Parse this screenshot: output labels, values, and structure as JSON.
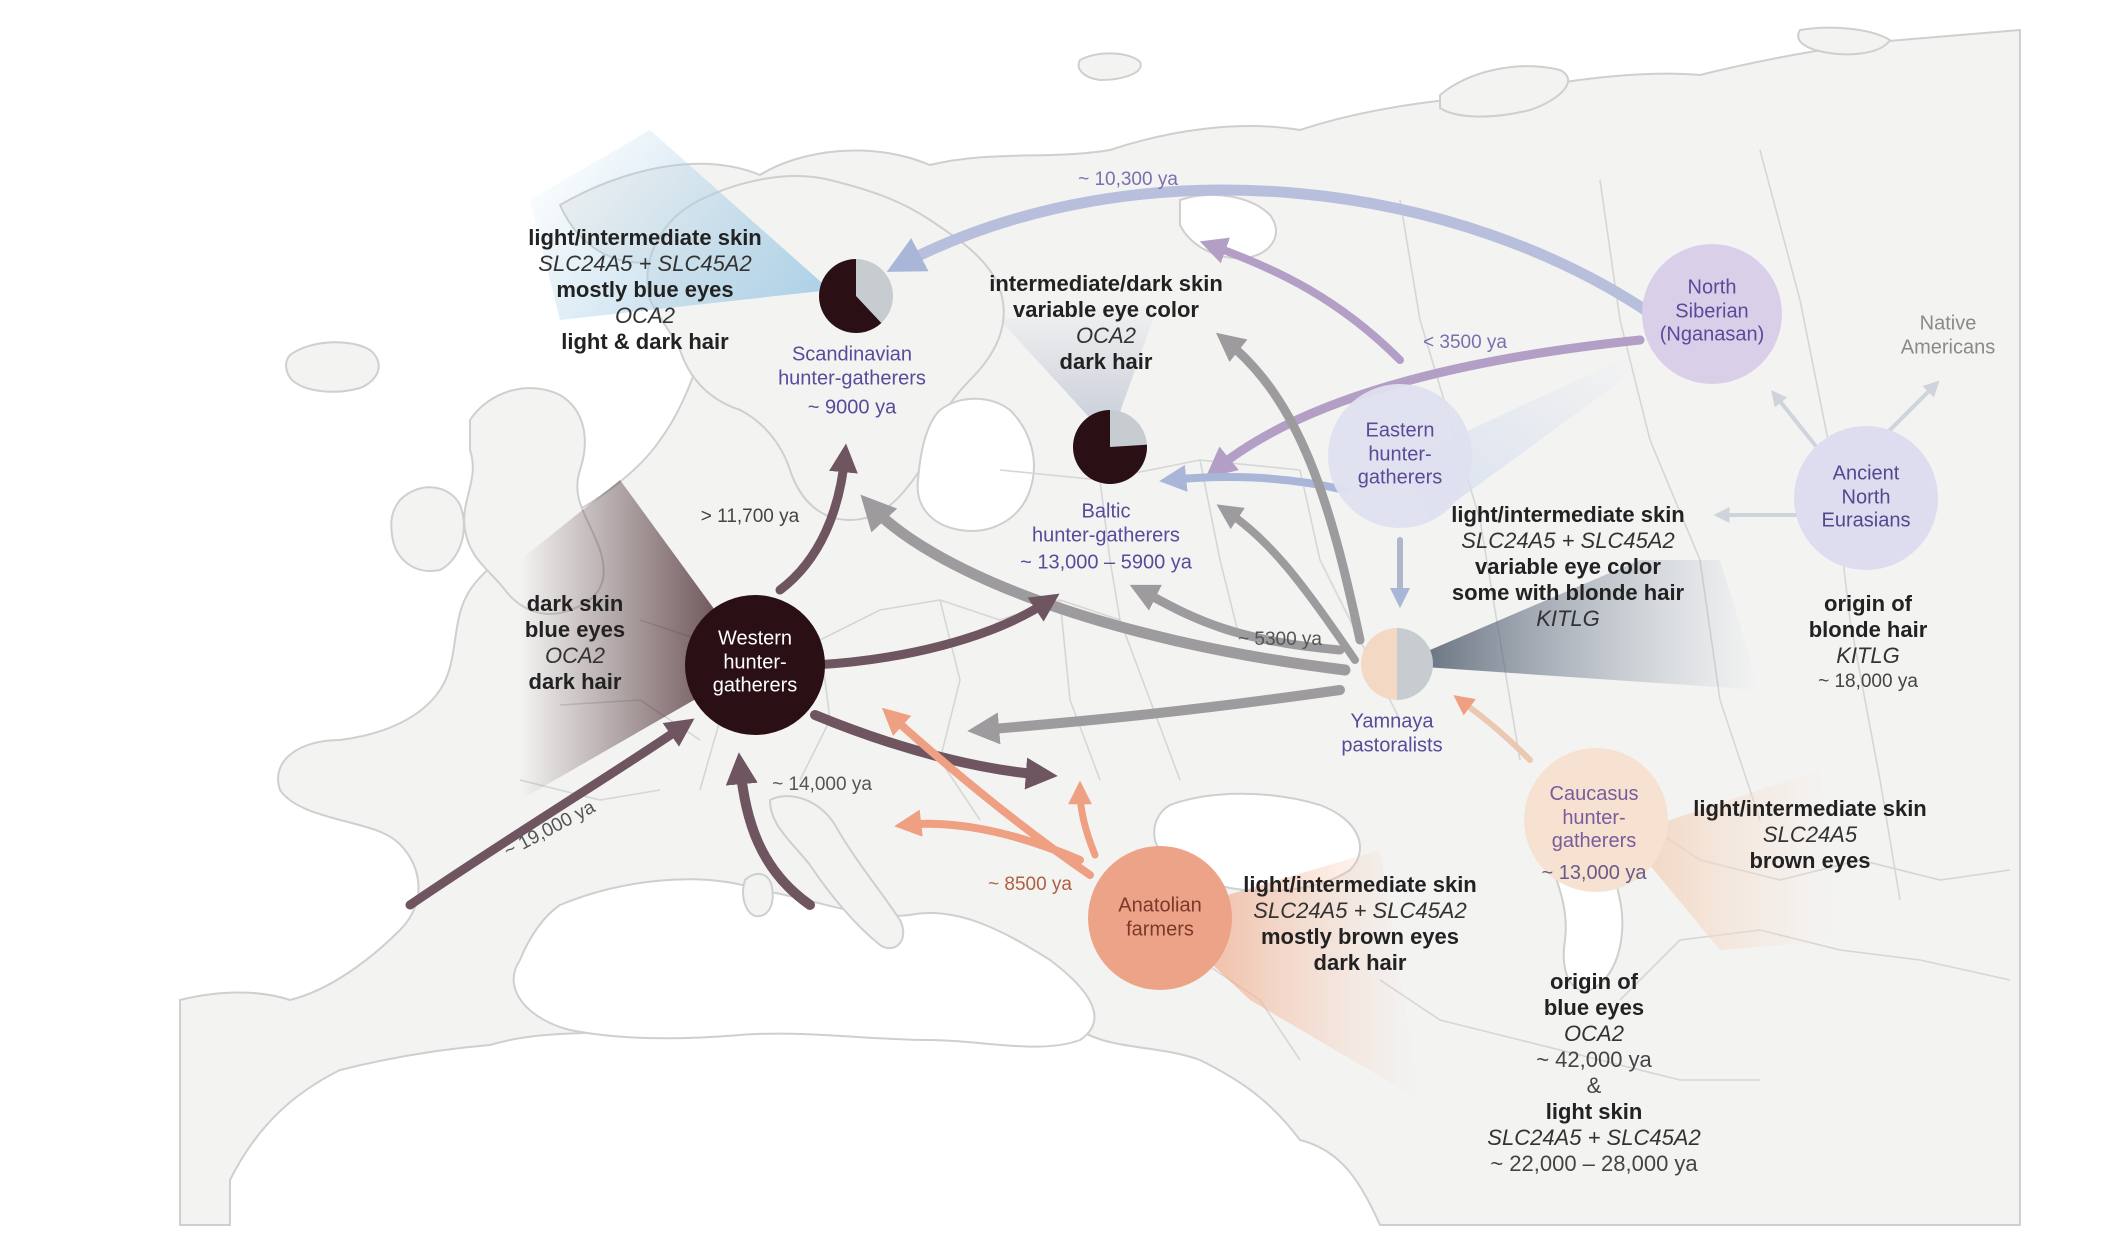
{
  "colors": {
    "dark_node": "#2a0f14",
    "purple_node": "#c9bfe2",
    "purple_text": "#5a4a9a",
    "ane_text": "#4f4a8e",
    "anatolian": "#eca387",
    "caucasus": "#f6dcc8",
    "yamnaya_light": "#f3d9c4",
    "yamnaya_dark": "#c7ccd1",
    "arrow_gray": "#9e9b9e",
    "arrow_dark_purple": "#6e5560",
    "arrow_salmon": "#ef9f82",
    "arrow_blue": "#a9b6d8",
    "arrow_lilac": "#b39ec5",
    "land": "#f3f3f2"
  },
  "nodes": {
    "scandinavian": {
      "lines": [
        "Scandinavian",
        "hunter-gatherers",
        "~ 9000 ya"
      ]
    },
    "baltic": {
      "lines": [
        "Baltic",
        "hunter-gatherers",
        "~ 13,000 – 5900 ya"
      ]
    },
    "western": {
      "lines": [
        "Western",
        "hunter-",
        "gatherers"
      ]
    },
    "eastern": {
      "lines": [
        "Eastern",
        "hunter-",
        "gatherers"
      ]
    },
    "north_siberian": {
      "lines": [
        "North",
        "Siberian",
        "(Nganasan)"
      ]
    },
    "ancient_north_eurasians": {
      "lines": [
        "Ancient",
        "North",
        "Eurasians"
      ]
    },
    "native_americans": {
      "lines": [
        "Native",
        "Americans"
      ]
    },
    "yamnaya": {
      "lines": [
        "Yamnaya",
        "pastoralists"
      ]
    },
    "caucasus": {
      "lines": [
        "Caucasus",
        "hunter-",
        "gatherers",
        "~ 13,000 ya"
      ]
    },
    "anatolian": {
      "lines": [
        "Anatolian",
        "farmers"
      ]
    }
  },
  "pie_fractions": {
    "scandinavian_dark": 0.62,
    "baltic_dark": 0.76
  },
  "annotations": {
    "scandinavian": [
      "light/intermediate skin",
      "SLC24A5 + SLC45A2",
      "mostly blue eyes",
      "OCA2",
      "light & dark hair"
    ],
    "baltic": [
      "intermediate/dark skin",
      "variable eye color",
      "OCA2",
      "dark hair"
    ],
    "western": [
      "dark skin",
      "blue eyes",
      "OCA2",
      "dark hair"
    ],
    "eastern": [
      "light/intermediate skin",
      "SLC24A5 + SLC45A2",
      "variable eye color",
      "some with blonde hair",
      "KITLG"
    ],
    "ane": [
      "origin of",
      "blonde hair",
      "KITLG",
      "~ 18,000 ya"
    ],
    "caucasus": [
      "light/intermediate skin",
      "SLC24A5",
      "brown eyes"
    ],
    "anatolian": [
      "light/intermediate skin",
      "SLC24A5 + SLC45A2",
      "mostly brown eyes",
      "dark hair"
    ],
    "blue_eyes_origin": [
      "origin of",
      "blue eyes",
      "OCA2",
      "~ 42,000 ya",
      "&",
      "light skin",
      "SLC24A5 + SLC45A2",
      "~ 22,000 – 28,000 ya"
    ]
  },
  "dates": {
    "d10300": "~ 10,300 ya",
    "d3500": "< 3500 ya",
    "d11700": "> 11,700 ya",
    "d5300": "~ 5300 ya",
    "d14000": "~ 14,000 ya",
    "d19000": "~ 19,000 ya",
    "d8500": "~ 8500 ya"
  }
}
